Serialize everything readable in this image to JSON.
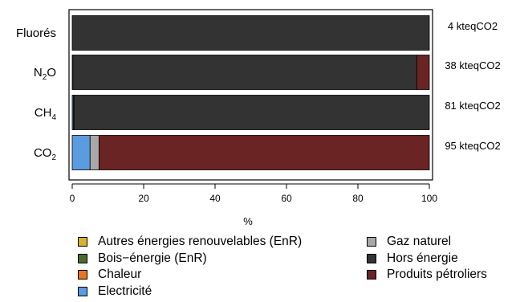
{
  "chart_data": {
    "type": "bar",
    "orientation": "horizontal",
    "stacked": true,
    "title": "",
    "xlabel": "%",
    "ylabel": "",
    "xlim": [
      0,
      100
    ],
    "xticks": [
      "0",
      "20",
      "40",
      "60",
      "80",
      "100"
    ],
    "categories": [
      {
        "base": "Fluorés",
        "sub": "",
        "total": "4 kteqCO2"
      },
      {
        "base": "N",
        "sub": "2",
        "suffix": "O",
        "total": "38 kteqCO2"
      },
      {
        "base": "CH",
        "sub": "4",
        "total": "81 kteqCO2"
      },
      {
        "base": "CO",
        "sub": "2",
        "total": "95 kteqCO2"
      }
    ],
    "series": [
      {
        "name": "Autres énergies renouvelables (EnR)",
        "color": "#d9b22e",
        "values": [
          0,
          0,
          0,
          0
        ]
      },
      {
        "name": "Bois−énergie (EnR)",
        "color": "#4e6b2e",
        "values": [
          0,
          0,
          0,
          0
        ]
      },
      {
        "name": "Chaleur",
        "color": "#e8761e",
        "values": [
          0,
          0,
          0,
          0
        ]
      },
      {
        "name": "Electricité",
        "color": "#5b9be0",
        "values": [
          0,
          0,
          0.3,
          5
        ]
      },
      {
        "name": "Gaz naturel",
        "color": "#a8a8a8",
        "values": [
          0,
          0.2,
          0.2,
          2.5
        ]
      },
      {
        "name": "Hors énergie",
        "color": "#333333",
        "values": [
          100,
          96.3,
          99.5,
          0
        ]
      },
      {
        "name": "Produits pétroliers",
        "color": "#6b2424",
        "values": [
          0,
          3.5,
          0,
          92.5
        ]
      }
    ],
    "legend_position": "bottom",
    "grid": false
  }
}
